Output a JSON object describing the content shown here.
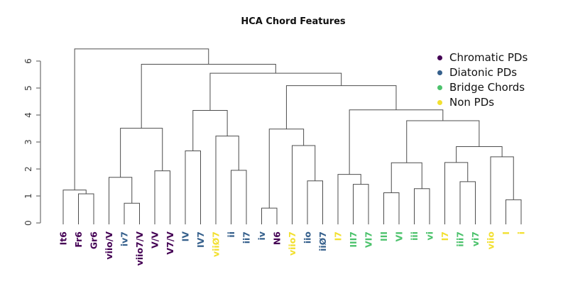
{
  "title": "HCA Chord Features",
  "colors": {
    "chromatic": "#440154",
    "diatonic": "#36608c",
    "bridge": "#4cc26c",
    "non": "#f2e030",
    "line": "#4d4d4d",
    "axis": "#7a7a7a",
    "tick_text": "#3d3d3d",
    "title_text": "#111111"
  },
  "legend": {
    "items": [
      {
        "label": "Chromatic PDs",
        "category": "chromatic"
      },
      {
        "label": "Diatonic PDs",
        "category": "diatonic"
      },
      {
        "label": "Bridge Chords",
        "category": "bridge"
      },
      {
        "label": "Non PDs",
        "category": "non"
      }
    ]
  },
  "chart_data": {
    "type": "dendrogram",
    "title": "HCA Chord Features",
    "xlabel": "",
    "ylabel": "",
    "ylim": [
      0,
      6
    ],
    "yticks": [
      0,
      1,
      2,
      3,
      4,
      5,
      6
    ],
    "grid": false,
    "legend_position": "top-right",
    "leaf_order": [
      "It6",
      "Fr6",
      "Gr6",
      "viio/V",
      "iv7",
      "viio7/V",
      "V/V",
      "V7/V",
      "IV",
      "IV7",
      "viiØ7",
      "ii",
      "ii7",
      "iv",
      "N6",
      "viio7",
      "iio",
      "iiØ7",
      "I7",
      "III7",
      "VI7",
      "III",
      "VI",
      "iii",
      "vi",
      "I7",
      "iii7",
      "vi7",
      "viio",
      "I",
      "i"
    ],
    "tree": {
      "h": 6.45,
      "c": [
        {
          "h": 1.22,
          "c": [
            {
              "label": "It6",
              "cat": "chromatic"
            },
            {
              "h": 1.08,
              "c": [
                {
                  "label": "Fr6",
                  "cat": "chromatic"
                },
                {
                  "label": "Gr6",
                  "cat": "chromatic"
                }
              ]
            }
          ]
        },
        {
          "h": 5.88,
          "c": [
            {
              "h": 3.51,
              "c": [
                {
                  "h": 1.69,
                  "c": [
                    {
                      "label": "viio/V",
                      "cat": "chromatic"
                    },
                    {
                      "h": 0.73,
                      "c": [
                        {
                          "label": "iv7",
                          "cat": "diatonic"
                        },
                        {
                          "label": "viio7/V",
                          "cat": "chromatic"
                        }
                      ]
                    }
                  ]
                },
                {
                  "h": 1.93,
                  "c": [
                    {
                      "label": "V/V",
                      "cat": "chromatic"
                    },
                    {
                      "label": "V7/V",
                      "cat": "chromatic"
                    }
                  ]
                }
              ]
            },
            {
              "h": 5.55,
              "c": [
                {
                  "h": 4.17,
                  "c": [
                    {
                      "h": 2.67,
                      "c": [
                        {
                          "label": "IV",
                          "cat": "diatonic"
                        },
                        {
                          "label": "IV7",
                          "cat": "diatonic"
                        }
                      ]
                    },
                    {
                      "h": 3.22,
                      "c": [
                        {
                          "label": "viiØ7",
                          "cat": "non"
                        },
                        {
                          "h": 1.95,
                          "c": [
                            {
                              "label": "ii",
                              "cat": "diatonic"
                            },
                            {
                              "label": "ii7",
                              "cat": "diatonic"
                            }
                          ]
                        }
                      ]
                    }
                  ]
                },
                {
                  "h": 5.09,
                  "c": [
                    {
                      "h": 3.48,
                      "c": [
                        {
                          "h": 0.55,
                          "c": [
                            {
                              "label": "iv",
                              "cat": "diatonic"
                            },
                            {
                              "label": "N6",
                              "cat": "chromatic"
                            }
                          ]
                        },
                        {
                          "h": 2.87,
                          "c": [
                            {
                              "label": "viio7",
                              "cat": "non"
                            },
                            {
                              "h": 1.56,
                              "c": [
                                {
                                  "label": "iio",
                                  "cat": "diatonic"
                                },
                                {
                                  "label": "iiØ7",
                                  "cat": "diatonic"
                                }
                              ]
                            }
                          ]
                        }
                      ]
                    },
                    {
                      "h": 4.19,
                      "c": [
                        {
                          "h": 1.8,
                          "c": [
                            {
                              "label": "I7",
                              "cat": "non"
                            },
                            {
                              "h": 1.43,
                              "c": [
                                {
                                  "label": "III7",
                                  "cat": "bridge"
                                },
                                {
                                  "label": "VI7",
                                  "cat": "bridge"
                                }
                              ]
                            }
                          ]
                        },
                        {
                          "h": 3.79,
                          "c": [
                            {
                              "h": 2.23,
                              "c": [
                                {
                                  "h": 1.12,
                                  "c": [
                                    {
                                      "label": "III",
                                      "cat": "bridge"
                                    },
                                    {
                                      "label": "VI",
                                      "cat": "bridge"
                                    }
                                  ]
                                },
                                {
                                  "h": 1.27,
                                  "c": [
                                    {
                                      "label": "iii",
                                      "cat": "bridge"
                                    },
                                    {
                                      "label": "vi",
                                      "cat": "bridge"
                                    }
                                  ]
                                }
                              ]
                            },
                            {
                              "h": 2.83,
                              "c": [
                                {
                                  "h": 2.24,
                                  "c": [
                                    {
                                      "label": "I7",
                                      "cat": "non"
                                    },
                                    {
                                      "h": 1.53,
                                      "c": [
                                        {
                                          "label": "iii7",
                                          "cat": "bridge"
                                        },
                                        {
                                          "label": "vi7",
                                          "cat": "bridge"
                                        }
                                      ]
                                    }
                                  ]
                                },
                                {
                                  "h": 2.45,
                                  "c": [
                                    {
                                      "label": "viio",
                                      "cat": "non"
                                    },
                                    {
                                      "h": 0.86,
                                      "c": [
                                        {
                                          "label": "I",
                                          "cat": "non"
                                        },
                                        {
                                          "label": "i",
                                          "cat": "non"
                                        }
                                      ]
                                    }
                                  ]
                                }
                              ]
                            }
                          ]
                        }
                      ]
                    }
                  ]
                }
              ]
            }
          ]
        }
      ]
    }
  }
}
